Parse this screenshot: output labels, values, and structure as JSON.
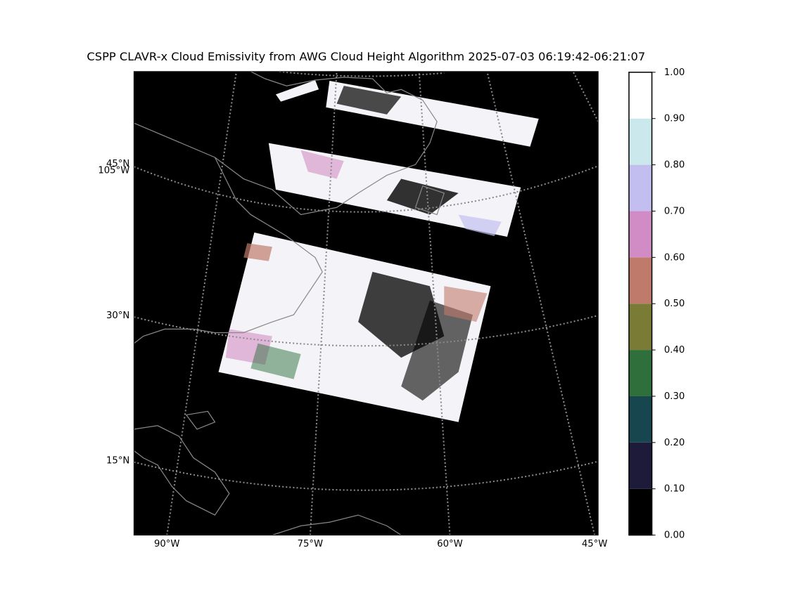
{
  "title": "CSPP CLAVR-x Cloud Emissivity from AWG Cloud Height Algorithm 2025-07-03 06:19:42-06:21:07",
  "lat_labels": [
    "45°N",
    "30°N",
    "15°N"
  ],
  "lon_labels": [
    "105°W",
    "90°W",
    "75°W",
    "60°W",
    "45°W"
  ],
  "colorbar": {
    "lim": [
      0,
      1
    ],
    "ticks": [
      {
        "value": 0,
        "label": "0.00"
      },
      {
        "value": 0.1,
        "label": "0.10"
      },
      {
        "value": 0.2,
        "label": "0.20"
      },
      {
        "value": 0.3,
        "label": "0.30"
      },
      {
        "value": 0.4,
        "label": "0.40"
      },
      {
        "value": 0.5,
        "label": "0.50"
      },
      {
        "value": 0.6,
        "label": "0.60"
      },
      {
        "value": 0.7,
        "label": "0.70"
      },
      {
        "value": 0.8,
        "label": "0.80"
      },
      {
        "value": 0.9,
        "label": "0.90"
      },
      {
        "value": 1,
        "label": "1.00"
      }
    ],
    "colors": [
      "#000000",
      "#1e1a3a",
      "#18464e",
      "#2e6f3c",
      "#7a7c35",
      "#c07a6b",
      "#d28cc5",
      "#c2bff0",
      "#cbe9ec",
      "#ffffff"
    ]
  }
}
